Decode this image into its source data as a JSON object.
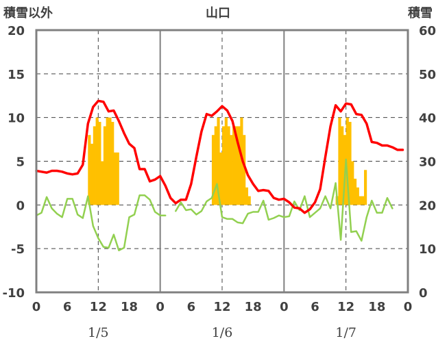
{
  "chart_data": {
    "type": "bar+line",
    "title": "山口",
    "left_axis_title": "積雪以外",
    "right_axis_title": "積雪",
    "left_ylim": [
      -10,
      20
    ],
    "left_yticks": [
      "20",
      "15",
      "10",
      "5",
      "0",
      "-5",
      "-10"
    ],
    "right_ylim": [
      0,
      60
    ],
    "right_yticks": [
      "60",
      "50",
      "40",
      "30",
      "20",
      "10",
      "0"
    ],
    "x_unit": "hours",
    "xlim": [
      0,
      72
    ],
    "x_tick_labels": [
      "0",
      "6",
      "12",
      "18",
      "0",
      "6",
      "12",
      "18",
      "0",
      "6",
      "12",
      "18",
      "0"
    ],
    "date_labels": [
      "1/5",
      "1/6",
      "1/7"
    ],
    "colors": {
      "red_series": "#ff0000",
      "green_series": "#92d050",
      "bars": "#ffc000",
      "baseline": "#7030a0",
      "grid": "#808080"
    },
    "bars": {
      "axis": "right",
      "x": [
        10,
        10.5,
        11,
        11.5,
        12,
        12.5,
        13,
        13.5,
        14,
        14.5,
        15,
        15.5,
        16,
        16.5,
        17,
        17.5,
        34,
        34.5,
        35,
        35.5,
        36,
        36.5,
        37,
        37.5,
        38,
        38.5,
        39,
        39.5,
        40,
        40.5,
        41,
        41.5,
        42,
        42.5,
        58,
        58.5,
        59,
        59.5,
        60,
        60.5,
        61,
        61.5,
        62,
        62.5,
        63,
        63.5,
        64,
        64.5,
        65,
        65.5
      ],
      "values": [
        36,
        34,
        38,
        40,
        39,
        30,
        38,
        40,
        40,
        39,
        32,
        32,
        0,
        0,
        0,
        0,
        36,
        38,
        40,
        32,
        38,
        40,
        38,
        36,
        38,
        38,
        38,
        40,
        36,
        24,
        22,
        0,
        0,
        0,
        22,
        40,
        38,
        36,
        40,
        39,
        30,
        26,
        24,
        22,
        22,
        28,
        0,
        0,
        0,
        0
      ]
    },
    "series": [
      {
        "axis": "left",
        "color": "red",
        "x": [
          0,
          1,
          2,
          3,
          4,
          5,
          6,
          7,
          8,
          9,
          10,
          11,
          12,
          13,
          14,
          15,
          16,
          17,
          18,
          19,
          20,
          21,
          22,
          23,
          24,
          25,
          26,
          27,
          28,
          29,
          30,
          31,
          32,
          33,
          34,
          35,
          36,
          37,
          38,
          39,
          40,
          41,
          42,
          43,
          44,
          45,
          46,
          47,
          48,
          49,
          50,
          51,
          52,
          53,
          54,
          55,
          56,
          57,
          58,
          59,
          60,
          61,
          62,
          63,
          64,
          65,
          66,
          67,
          68,
          69,
          70,
          71
        ],
        "values": [
          3.9,
          3.8,
          3.7,
          3.9,
          3.9,
          3.8,
          3.6,
          3.5,
          3.6,
          4.6,
          9.3,
          11.2,
          11.9,
          11.8,
          10.7,
          10.8,
          9.6,
          8.2,
          7.0,
          6.5,
          4.1,
          4.1,
          2.7,
          2.9,
          3.3,
          2.2,
          0.8,
          0.2,
          0.6,
          0.6,
          2.4,
          5.5,
          8.4,
          10.4,
          10.2,
          10.7,
          11.3,
          10.8,
          9.6,
          7.2,
          5.0,
          3.4,
          2.4,
          1.6,
          1.7,
          1.6,
          0.8,
          0.6,
          0.7,
          0.3,
          -0.3,
          -0.4,
          -0.9,
          -0.5,
          0.3,
          1.8,
          5.5,
          9.0,
          11.4,
          10.7,
          11.6,
          11.5,
          10.4,
          10.3,
          9.3,
          7.2,
          7.1,
          6.8,
          6.8,
          6.6,
          6.3,
          6.3
        ],
        "gaps_after": []
      },
      {
        "axis": "left",
        "color": "green",
        "x": [
          0,
          1,
          2,
          3,
          4,
          5,
          6,
          7,
          8,
          9,
          10,
          11,
          12,
          13,
          14,
          15,
          16,
          17,
          18,
          19,
          20,
          21,
          22,
          23,
          24,
          25,
          26,
          27,
          28,
          29,
          30,
          31,
          32,
          33,
          34,
          35,
          36,
          37,
          38,
          39,
          40,
          41,
          42,
          43,
          44,
          45,
          46,
          47,
          48,
          49,
          50,
          51,
          52,
          53,
          54,
          55,
          56,
          57,
          58,
          59,
          60,
          61,
          62,
          63,
          64,
          65,
          66,
          67,
          68,
          69,
          70,
          71
        ],
        "values": [
          -1.2,
          -0.9,
          0.9,
          -0.4,
          -1.0,
          -1.4,
          0.7,
          0.7,
          -1.1,
          -1.5,
          1.0,
          -2.4,
          -3.8,
          -4.8,
          -4.9,
          -3.4,
          -5.2,
          -4.9,
          -1.4,
          -1.1,
          1.1,
          1.1,
          0.6,
          -0.8,
          -1.2,
          -1.2,
          null,
          -0.7,
          0.3,
          -0.6,
          -0.5,
          -1.1,
          -0.7,
          0.4,
          0.8,
          2.4,
          -1.4,
          -1.6,
          -1.6,
          -2.0,
          -2.1,
          -1.0,
          -0.8,
          -0.8,
          0.5,
          -1.7,
          -1.5,
          -1.2,
          -1.4,
          -1.3,
          0.4,
          -0.6,
          1.0,
          -1.4,
          -0.9,
          -0.4,
          1.0,
          -0.4,
          2.5,
          -4.0,
          5.2,
          -3.1,
          -3.0,
          -4.1,
          -1.4,
          0.5,
          -0.9,
          -0.9,
          0.8,
          -0.4,
          null,
          null
        ],
        "gaps_after": []
      },
      {
        "axis": "left",
        "color": "purple",
        "x": [
          0,
          72
        ],
        "values": [
          -10,
          -10
        ],
        "gaps_after": []
      }
    ],
    "grid": true
  }
}
